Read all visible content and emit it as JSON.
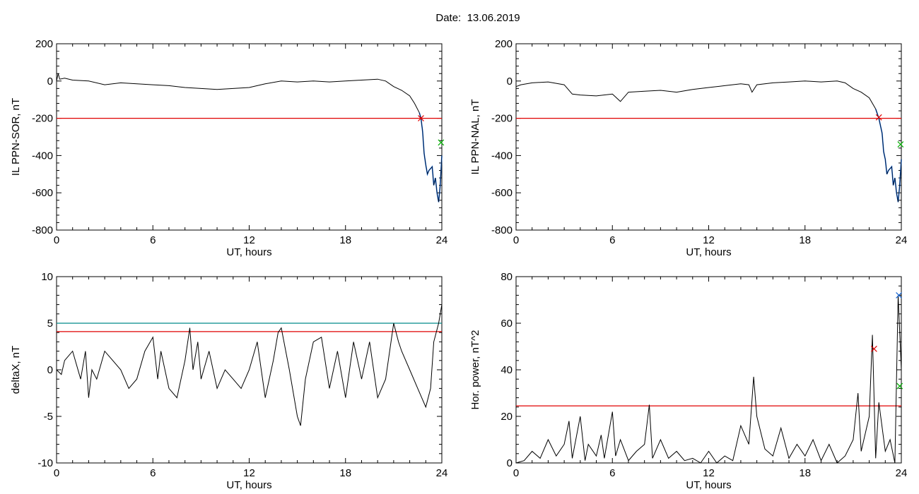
{
  "header": {
    "date_label": "Date:",
    "date_value": "13.06.2019"
  },
  "colors": {
    "data": "#000000",
    "threshold": "#e00000",
    "threshold2": "#008b8b",
    "blue": "#1060d0",
    "green": "#00b000"
  },
  "chart_data": [
    {
      "type": "line",
      "ylabel": "IL PPN-SOR, nT",
      "xlabel": "UT, hours",
      "xlim": [
        0,
        24
      ],
      "ylim": [
        -800,
        200
      ],
      "xticks": [
        "0",
        "6",
        "12",
        "18",
        "24"
      ],
      "yticks": [
        "200",
        "0",
        "-200",
        "-400",
        "-600",
        "-800"
      ],
      "threshold": -200,
      "marker": {
        "x": 22.7,
        "y": -200
      },
      "series": [
        {
          "role": "main",
          "x": [
            0,
            0.1,
            0.2,
            0.5,
            1,
            2,
            3,
            4,
            5,
            6,
            7,
            8,
            9,
            10,
            11,
            12,
            13,
            14,
            15,
            16,
            17,
            18,
            19,
            20,
            20.5,
            21,
            21.5,
            22,
            22.3,
            22.6
          ],
          "y": [
            0,
            40,
            10,
            15,
            5,
            0,
            -20,
            -10,
            -15,
            -20,
            -25,
            -35,
            -40,
            -45,
            -40,
            -35,
            -15,
            0,
            -5,
            0,
            -5,
            0,
            5,
            10,
            0,
            -30,
            -50,
            -80,
            -120,
            -170
          ]
        },
        {
          "role": "storm",
          "x": [
            22.6,
            22.7,
            22.8,
            22.9,
            23.0,
            23.1,
            23.2,
            23.4,
            23.5,
            23.6,
            23.7,
            23.8,
            23.9,
            24.0
          ],
          "y": [
            -170,
            -200,
            -270,
            -390,
            -450,
            -500,
            -480,
            -460,
            -560,
            -520,
            -600,
            -650,
            -560,
            -400
          ]
        }
      ],
      "end_marker": {
        "x": 23.95,
        "y": -330
      }
    },
    {
      "type": "line",
      "ylabel": "IL PPN-NAL, nT",
      "xlabel": "UT, hours",
      "xlim": [
        0,
        24
      ],
      "ylim": [
        -800,
        200
      ],
      "xticks": [
        "0",
        "6",
        "12",
        "18",
        "24"
      ],
      "yticks": [
        "200",
        "0",
        "-200",
        "-400",
        "-600",
        "-800"
      ],
      "threshold": -200,
      "marker": {
        "x": 22.6,
        "y": -195
      },
      "series": [
        {
          "role": "main",
          "x": [
            0,
            0.3,
            1,
            2,
            3,
            3.5,
            4,
            5,
            6,
            6.5,
            7,
            8,
            9,
            10,
            11,
            12,
            13,
            14,
            14.5,
            14.7,
            15,
            16,
            17,
            18,
            19,
            20,
            20.5,
            21,
            21.5,
            22,
            22.4
          ],
          "y": [
            -30,
            -20,
            -10,
            -5,
            -20,
            -70,
            -75,
            -80,
            -70,
            -110,
            -60,
            -55,
            -50,
            -60,
            -45,
            -35,
            -25,
            -15,
            -20,
            -60,
            -20,
            -10,
            -5,
            0,
            -5,
            0,
            -10,
            -40,
            -60,
            -90,
            -150
          ]
        },
        {
          "role": "storm",
          "x": [
            22.4,
            22.6,
            22.8,
            22.9,
            23.0,
            23.1,
            23.2,
            23.4,
            23.5,
            23.6,
            23.7,
            23.8,
            23.9,
            24.0
          ],
          "y": [
            -150,
            -200,
            -280,
            -380,
            -420,
            -500,
            -480,
            -460,
            -560,
            -520,
            -600,
            -650,
            -560,
            -420
          ]
        }
      ],
      "end_marker": {
        "x": 23.95,
        "y": -340
      }
    },
    {
      "type": "line",
      "ylabel": "deltaX, nT",
      "xlabel": "UT, hours",
      "xlim": [
        0,
        24
      ],
      "ylim": [
        -10,
        10
      ],
      "xticks": [
        "0",
        "6",
        "12",
        "18",
        "24"
      ],
      "yticks": [
        "10",
        "5",
        "0",
        "-5",
        "-10"
      ],
      "threshold": 4.1,
      "threshold2": 5.0,
      "series": [
        {
          "role": "main",
          "x": [
            0,
            0.3,
            0.5,
            1,
            1.5,
            1.8,
            2,
            2.2,
            2.5,
            3,
            3.5,
            4,
            4.5,
            5,
            5.5,
            6,
            6.3,
            6.5,
            7,
            7.5,
            8,
            8.3,
            8.5,
            8.8,
            9,
            9.5,
            10,
            10.5,
            11,
            11.5,
            12,
            12.5,
            13,
            13.5,
            13.8,
            14,
            14.5,
            15,
            15.2,
            15.5,
            16,
            16.5,
            17,
            17.5,
            18,
            18.5,
            19,
            19.5,
            20,
            20.5,
            21,
            21.3,
            21.5,
            22,
            22.5,
            23,
            23.3,
            23.5,
            23.8,
            24
          ],
          "y": [
            0,
            -0.5,
            1,
            2,
            -1,
            2,
            -3,
            0,
            -1,
            2,
            1,
            0,
            -2,
            -1,
            2,
            3.5,
            -1,
            2,
            -2,
            -3,
            1,
            4.5,
            0,
            3,
            -1,
            2,
            -2,
            0,
            -1,
            -2,
            0,
            3,
            -3,
            1,
            4,
            4.5,
            0,
            -5,
            -6,
            -1,
            3,
            3.5,
            -2,
            2,
            -3,
            3,
            -1,
            3,
            -3,
            -1,
            5,
            3,
            2,
            0,
            -2,
            -4,
            -2,
            3,
            5,
            7
          ]
        }
      ]
    },
    {
      "type": "line",
      "ylabel": "Hor. power, nT^2",
      "xlabel": "UT, hours",
      "xlim": [
        0,
        24
      ],
      "ylim": [
        0,
        80
      ],
      "xticks": [
        "0",
        "6",
        "12",
        "18",
        "24"
      ],
      "yticks": [
        "80",
        "60",
        "40",
        "20",
        "0"
      ],
      "threshold": 24.5,
      "marker": {
        "x": 22.3,
        "y": 49
      },
      "series": [
        {
          "role": "main",
          "x": [
            0,
            0.5,
            1,
            1.5,
            2,
            2.5,
            3,
            3.3,
            3.5,
            4,
            4.3,
            4.5,
            5,
            5.3,
            5.5,
            6,
            6.2,
            6.5,
            7,
            7.5,
            8,
            8.3,
            8.5,
            9,
            9.5,
            10,
            10.5,
            11,
            11.5,
            12,
            12.5,
            13,
            13.5,
            14,
            14.5,
            14.8,
            15,
            15.5,
            16,
            16.5,
            17,
            17.5,
            18,
            18.5,
            19,
            19.5,
            20,
            20.5,
            21,
            21.3,
            21.5,
            22,
            22.2,
            22.4,
            22.6,
            23,
            23.3,
            23.6,
            23.8,
            24
          ],
          "y": [
            0,
            1,
            5,
            2,
            10,
            3,
            8,
            18,
            2,
            20,
            1,
            8,
            3,
            12,
            2,
            22,
            3,
            10,
            1,
            5,
            8,
            25,
            2,
            10,
            2,
            5,
            1,
            2,
            0,
            5,
            0,
            3,
            1,
            16,
            8,
            37,
            20,
            6,
            3,
            15,
            2,
            8,
            3,
            10,
            1,
            8,
            0,
            3,
            10,
            30,
            5,
            20,
            55,
            2,
            26,
            5,
            10,
            0,
            72,
            40
          ]
        }
      ],
      "end_markers": [
        {
          "x": 23.85,
          "y": 72,
          "color": "blue"
        },
        {
          "x": 23.9,
          "y": 33,
          "color": "green"
        }
      ]
    }
  ]
}
